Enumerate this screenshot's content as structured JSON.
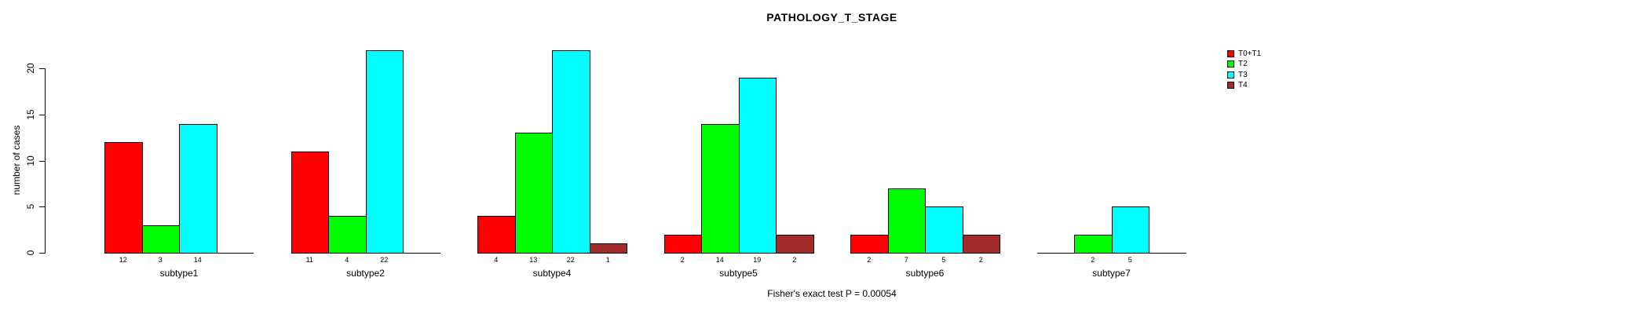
{
  "chart_data": {
    "type": "bar",
    "title": "PATHOLOGY_T_STAGE",
    "ylabel": "number of cases",
    "xlabel": "",
    "ylim": [
      0,
      20
    ],
    "yticks": [
      0,
      5,
      10,
      15,
      20
    ],
    "grid": false,
    "legend_position": "top-right-outside",
    "categories": [
      "subtype1",
      "subtype2",
      "subtype4",
      "subtype5",
      "subtype6",
      "subtype7"
    ],
    "series": [
      {
        "name": "T0+T1",
        "color": "#FF0000",
        "values": [
          12,
          11,
          4,
          2,
          2,
          0
        ]
      },
      {
        "name": "T2",
        "color": "#00FF00",
        "values": [
          3,
          4,
          13,
          14,
          7,
          2
        ]
      },
      {
        "name": "T3",
        "color": "#00FFFF",
        "values": [
          14,
          22,
          22,
          19,
          5,
          5
        ]
      },
      {
        "name": "T4",
        "color": "#A52A2A",
        "values": [
          0,
          0,
          1,
          2,
          2,
          0
        ]
      }
    ],
    "bar_value_labels_shown": true,
    "footer": "Fisher's exact test P = 0.00054"
  },
  "colors": {
    "background": "#FFFFFF",
    "axis": "#000000",
    "text": "#000000"
  }
}
